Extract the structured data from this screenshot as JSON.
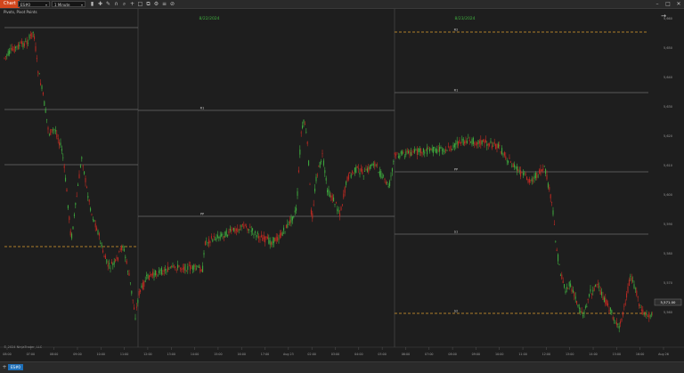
{
  "toolbar": {
    "app_title": "Chart",
    "instrument": "ES#0",
    "interval": "1 Minute",
    "icons": [
      "bar-type-icon",
      "crosshair-icon",
      "draw-icon",
      "magnet-icon",
      "zoom-icon",
      "plus-icon",
      "square-icon",
      "copy-icon",
      "settings-icon",
      "list-icon",
      "cancel-icon"
    ]
  },
  "chart": {
    "subtitle": "Pivots, Pivot Points",
    "copyright": "© 2024 NinjaTrader, LLC",
    "colors": {
      "background": "#1e1e1e",
      "up_candle": "#3fae3f",
      "down_candle": "#c22a22",
      "pivot_line": "#6d6d6d",
      "dashed_line": "#e0a030",
      "session_divider": "#3c3c3c",
      "date_label": "#3fae3f"
    }
  },
  "chart_data": {
    "type": "candlestick",
    "sessions": [
      {
        "date_label": "8/22/2024"
      },
      {
        "date_label": "8/23/2024"
      }
    ],
    "pivot_labels": {
      "session_1": [
        "R1",
        "PP"
      ],
      "session_2": [
        "R2",
        "R1",
        "PP",
        "S1",
        "S2"
      ]
    },
    "x_ticks": [
      "08:00",
      "07:00",
      "08:00",
      "09:00",
      "10:00",
      "11:00",
      "12:00",
      "13:00",
      "14:00",
      "15:00",
      "16:00",
      "17:00",
      "Aug 23",
      "02:00",
      "03:00",
      "04:00",
      "05:00",
      "06:00",
      "07:00",
      "08:00",
      "09:00",
      "10:00",
      "11:00",
      "12:00",
      "13:00",
      "14:00",
      "15:00",
      "16:00",
      "Aug 26"
    ],
    "price_labels": [
      "5,660",
      "5,650",
      "5,640",
      "5,630",
      "5,620",
      "5,610",
      "5,600",
      "5,590",
      "5,580",
      "5,570",
      "5,560"
    ],
    "current_price": "5,571.00"
  },
  "tabs": {
    "active": "ES#0",
    "add_icon": "plus-icon"
  }
}
